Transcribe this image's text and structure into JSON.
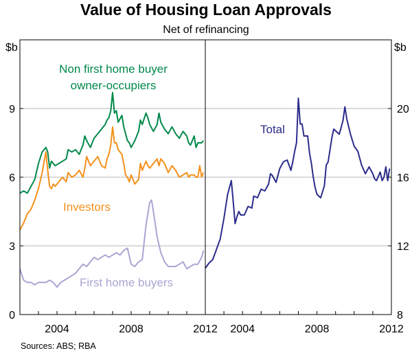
{
  "chart_data": {
    "title": "Value of Housing Loan Approvals",
    "subtitle": "Net of refinancing",
    "source": "Sources: ABS; RBA",
    "panels": [
      {
        "type": "line",
        "unit": "$b",
        "ylim": [
          0,
          12
        ],
        "yticks": [
          "0",
          "3",
          "6",
          "9"
        ],
        "xlim": [
          2002,
          2012
        ],
        "xticks": [
          "2004",
          "2008",
          "2012"
        ],
        "series": [
          {
            "name": "Non first home buyer owner-occupiers",
            "color": "#00884a",
            "x": [
              2002.0,
              2002.2,
              2002.4,
              2002.6,
              2002.8,
              2003.0,
              2003.2,
              2003.4,
              2003.5,
              2003.6,
              2003.7,
              2003.8,
              2003.9,
              2004.1,
              2004.3,
              2004.5,
              2004.6,
              2004.8,
              2005.0,
              2005.2,
              2005.4,
              2005.5,
              2005.6,
              2005.8,
              2006.0,
              2006.2,
              2006.4,
              2006.6,
              2006.7,
              2006.8,
              2006.9,
              2007.0,
              2007.1,
              2007.2,
              2007.3,
              2007.5,
              2007.6,
              2007.7,
              2007.8,
              2007.9,
              2008.0,
              2008.2,
              2008.4,
              2008.5,
              2008.6,
              2008.8,
              2008.9,
              2009.0,
              2009.2,
              2009.4,
              2009.5,
              2009.6,
              2009.8,
              2010.0,
              2010.2,
              2010.4,
              2010.6,
              2010.8,
              2011.0,
              2011.1,
              2011.2,
              2011.4,
              2011.5,
              2011.6,
              2011.7,
              2011.8,
              2011.9
            ],
            "values": [
              5.3,
              5.4,
              5.3,
              5.6,
              5.9,
              6.6,
              7.1,
              7.3,
              7.1,
              6.4,
              6.7,
              6.6,
              6.5,
              6.6,
              6.7,
              6.8,
              7.2,
              7.1,
              7.2,
              7.0,
              7.4,
              7.8,
              7.6,
              7.3,
              7.7,
              7.9,
              8.1,
              8.3,
              8.5,
              8.6,
              8.9,
              9.7,
              8.8,
              8.9,
              8.4,
              8.7,
              8.2,
              7.9,
              7.6,
              7.5,
              7.3,
              7.6,
              8.0,
              8.5,
              8.3,
              8.8,
              8.6,
              8.3,
              8.0,
              8.3,
              8.8,
              8.4,
              8.1,
              7.9,
              8.2,
              7.9,
              7.7,
              8.0,
              7.8,
              7.5,
              7.4,
              7.8,
              7.3,
              7.5,
              7.5,
              7.5,
              7.6
            ]
          },
          {
            "name": "Investors",
            "color": "#f3901b",
            "x": [
              2002.0,
              2002.2,
              2002.4,
              2002.6,
              2002.8,
              2003.0,
              2003.2,
              2003.4,
              2003.5,
              2003.6,
              2003.7,
              2003.8,
              2003.9,
              2004.1,
              2004.3,
              2004.5,
              2004.6,
              2004.8,
              2005.0,
              2005.2,
              2005.4,
              2005.5,
              2005.6,
              2005.8,
              2006.0,
              2006.2,
              2006.4,
              2006.6,
              2006.7,
              2006.8,
              2006.9,
              2007.0,
              2007.1,
              2007.2,
              2007.3,
              2007.5,
              2007.6,
              2007.7,
              2007.8,
              2007.9,
              2008.0,
              2008.2,
              2008.4,
              2008.5,
              2008.6,
              2008.8,
              2008.9,
              2009.0,
              2009.2,
              2009.4,
              2009.5,
              2009.6,
              2009.8,
              2010.0,
              2010.2,
              2010.4,
              2010.6,
              2010.8,
              2011.0,
              2011.1,
              2011.2,
              2011.4,
              2011.5,
              2011.6,
              2011.7,
              2011.8,
              2011.9
            ],
            "values": [
              3.7,
              4.0,
              4.4,
              4.6,
              5.0,
              5.5,
              6.2,
              7.1,
              6.3,
              5.6,
              5.5,
              5.7,
              5.6,
              5.8,
              6.0,
              5.8,
              6.2,
              6.0,
              6.1,
              6.3,
              6.0,
              6.4,
              6.9,
              6.5,
              6.7,
              6.9,
              6.5,
              6.4,
              6.8,
              7.0,
              7.4,
              8.2,
              7.5,
              7.5,
              7.2,
              7.0,
              6.6,
              6.1,
              6.0,
              5.8,
              6.1,
              5.7,
              5.9,
              6.6,
              6.3,
              6.7,
              6.5,
              6.4,
              6.6,
              6.8,
              6.5,
              6.8,
              6.6,
              6.2,
              6.5,
              6.3,
              6.0,
              6.1,
              6.2,
              6.0,
              6.1,
              6.1,
              6.0,
              6.0,
              6.5,
              6.0,
              6.2
            ]
          },
          {
            "name": "First home buyers",
            "color": "#a8a6d2",
            "x": [
              2002.0,
              2002.2,
              2002.4,
              2002.6,
              2002.8,
              2003.0,
              2003.2,
              2003.4,
              2003.6,
              2003.8,
              2004.0,
              2004.2,
              2004.4,
              2004.6,
              2004.8,
              2005.0,
              2005.2,
              2005.4,
              2005.6,
              2005.8,
              2006.0,
              2006.2,
              2006.4,
              2006.6,
              2006.8,
              2007.0,
              2007.2,
              2007.4,
              2007.6,
              2007.8,
              2008.0,
              2008.2,
              2008.4,
              2008.6,
              2008.8,
              2009.0,
              2009.1,
              2009.2,
              2009.4,
              2009.6,
              2009.8,
              2010.0,
              2010.2,
              2010.4,
              2010.6,
              2010.8,
              2011.0,
              2011.2,
              2011.4,
              2011.6,
              2011.8,
              2011.9
            ],
            "values": [
              2.0,
              1.5,
              1.4,
              1.4,
              1.3,
              1.4,
              1.4,
              1.4,
              1.5,
              1.4,
              1.2,
              1.4,
              1.5,
              1.6,
              1.7,
              1.8,
              2.0,
              2.2,
              2.1,
              2.3,
              2.5,
              2.4,
              2.5,
              2.6,
              2.5,
              2.6,
              2.7,
              2.6,
              2.8,
              2.9,
              2.2,
              2.1,
              2.3,
              2.4,
              3.9,
              4.9,
              5.0,
              4.5,
              3.4,
              2.7,
              2.3,
              2.1,
              2.1,
              2.1,
              2.2,
              2.3,
              2.0,
              2.1,
              2.2,
              2.2,
              2.5,
              2.8
            ]
          }
        ],
        "annotations": [
          "Non first home buyer",
          "owner-occupiers",
          "Investors",
          "First home buyers"
        ]
      },
      {
        "type": "line",
        "unit": "$b",
        "ylim": [
          8,
          24
        ],
        "yticks": [
          "8",
          "12",
          "16",
          "20"
        ],
        "xlim": [
          2002,
          2012
        ],
        "xticks": [
          "2004",
          "2008",
          "2012"
        ],
        "series": [
          {
            "name": "Total",
            "color": "#2b2b8c",
            "x": [
              2002.0,
              2002.2,
              2002.4,
              2002.6,
              2002.8,
              2003.0,
              2003.2,
              2003.4,
              2003.5,
              2003.6,
              2003.7,
              2003.8,
              2003.9,
              2004.1,
              2004.3,
              2004.5,
              2004.6,
              2004.8,
              2005.0,
              2005.2,
              2005.4,
              2005.5,
              2005.6,
              2005.8,
              2006.0,
              2006.2,
              2006.4,
              2006.6,
              2006.7,
              2006.8,
              2006.9,
              2007.0,
              2007.1,
              2007.2,
              2007.3,
              2007.5,
              2007.6,
              2007.7,
              2007.8,
              2007.9,
              2008.0,
              2008.2,
              2008.4,
              2008.5,
              2008.6,
              2008.8,
              2008.9,
              2009.0,
              2009.2,
              2009.4,
              2009.5,
              2009.6,
              2009.8,
              2010.0,
              2010.2,
              2010.4,
              2010.6,
              2010.8,
              2011.0,
              2011.1,
              2011.2,
              2011.4,
              2011.5,
              2011.6,
              2011.7,
              2011.8,
              2011.9
            ],
            "values": [
              10.7,
              11.0,
              11.2,
              11.8,
              12.4,
              13.6,
              15.0,
              15.8,
              14.6,
              13.3,
              13.7,
              14.0,
              13.8,
              13.8,
              14.3,
              14.2,
              14.9,
              14.8,
              15.3,
              15.2,
              15.6,
              16.2,
              16.1,
              15.7,
              16.5,
              16.9,
              17.0,
              16.4,
              16.9,
              17.5,
              18.0,
              20.6,
              19.1,
              19.1,
              18.4,
              18.4,
              17.4,
              16.8,
              16.0,
              15.4,
              15.0,
              14.8,
              15.5,
              16.7,
              16.9,
              18.3,
              18.8,
              18.7,
              18.5,
              19.3,
              20.1,
              19.4,
              18.5,
              17.8,
              17.5,
              16.7,
              16.2,
              16.6,
              16.2,
              15.9,
              15.8,
              16.3,
              15.8,
              16.0,
              16.6,
              15.8,
              16.5
            ]
          }
        ],
        "annotations": [
          "Total"
        ]
      }
    ]
  }
}
